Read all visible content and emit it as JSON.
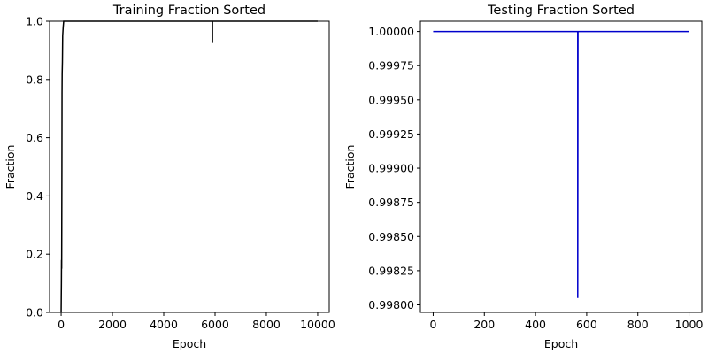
{
  "chart_data": [
    {
      "type": "line",
      "title": "Training Fraction Sorted",
      "xlabel": "Epoch",
      "ylabel": "Fraction",
      "xlim": [
        -450,
        10450
      ],
      "ylim": [
        0,
        1
      ],
      "xticks": [
        0,
        2000,
        4000,
        6000,
        8000,
        10000
      ],
      "yticks": [
        0,
        0.2,
        0.4,
        0.6,
        0.8,
        1
      ],
      "xtick_labels": [
        "0",
        "2000",
        "4000",
        "6000",
        "8000",
        "10000"
      ],
      "ytick_labels": [
        "0.0",
        "0.2",
        "0.4",
        "0.6",
        "0.8",
        "1.0"
      ],
      "grid": false,
      "series": [
        {
          "color": "#000000",
          "x": [
            0,
            5,
            10,
            15,
            20,
            25,
            30,
            35,
            40,
            50,
            60,
            80,
            100,
            150,
            5900,
            5900,
            5900,
            5950,
            10000
          ],
          "y": [
            0.0,
            0.05,
            0.1,
            0.18,
            0.15,
            0.3,
            0.5,
            0.75,
            0.82,
            0.86,
            0.95,
            0.98,
            1.0,
            1.0,
            1.0,
            0.925,
            1.0,
            1.0,
            1.0
          ]
        }
      ]
    },
    {
      "type": "line",
      "title": "Testing Fraction Sorted",
      "xlabel": "Epoch",
      "ylabel": "Fraction",
      "xlim": [
        -50,
        1050
      ],
      "ylim": [
        0.997945,
        1.000075
      ],
      "xticks": [
        0,
        200,
        400,
        600,
        800,
        1000
      ],
      "yticks": [
        0.998,
        0.99825,
        0.9985,
        0.99875,
        0.999,
        0.99925,
        0.9995,
        0.99975,
        1.0
      ],
      "xtick_labels": [
        "0",
        "200",
        "400",
        "600",
        "800",
        "1000"
      ],
      "ytick_labels": [
        "0.99800",
        "0.99825",
        "0.99850",
        "0.99875",
        "0.99900",
        "0.99925",
        "0.99950",
        "0.99975",
        "1.00000"
      ],
      "grid": false,
      "series": [
        {
          "color": "#0000cc",
          "x": [
            0,
            565,
            565,
            566,
            1000
          ],
          "y": [
            1.0,
            1.0,
            0.99805,
            1.0,
            1.0
          ]
        }
      ]
    }
  ]
}
